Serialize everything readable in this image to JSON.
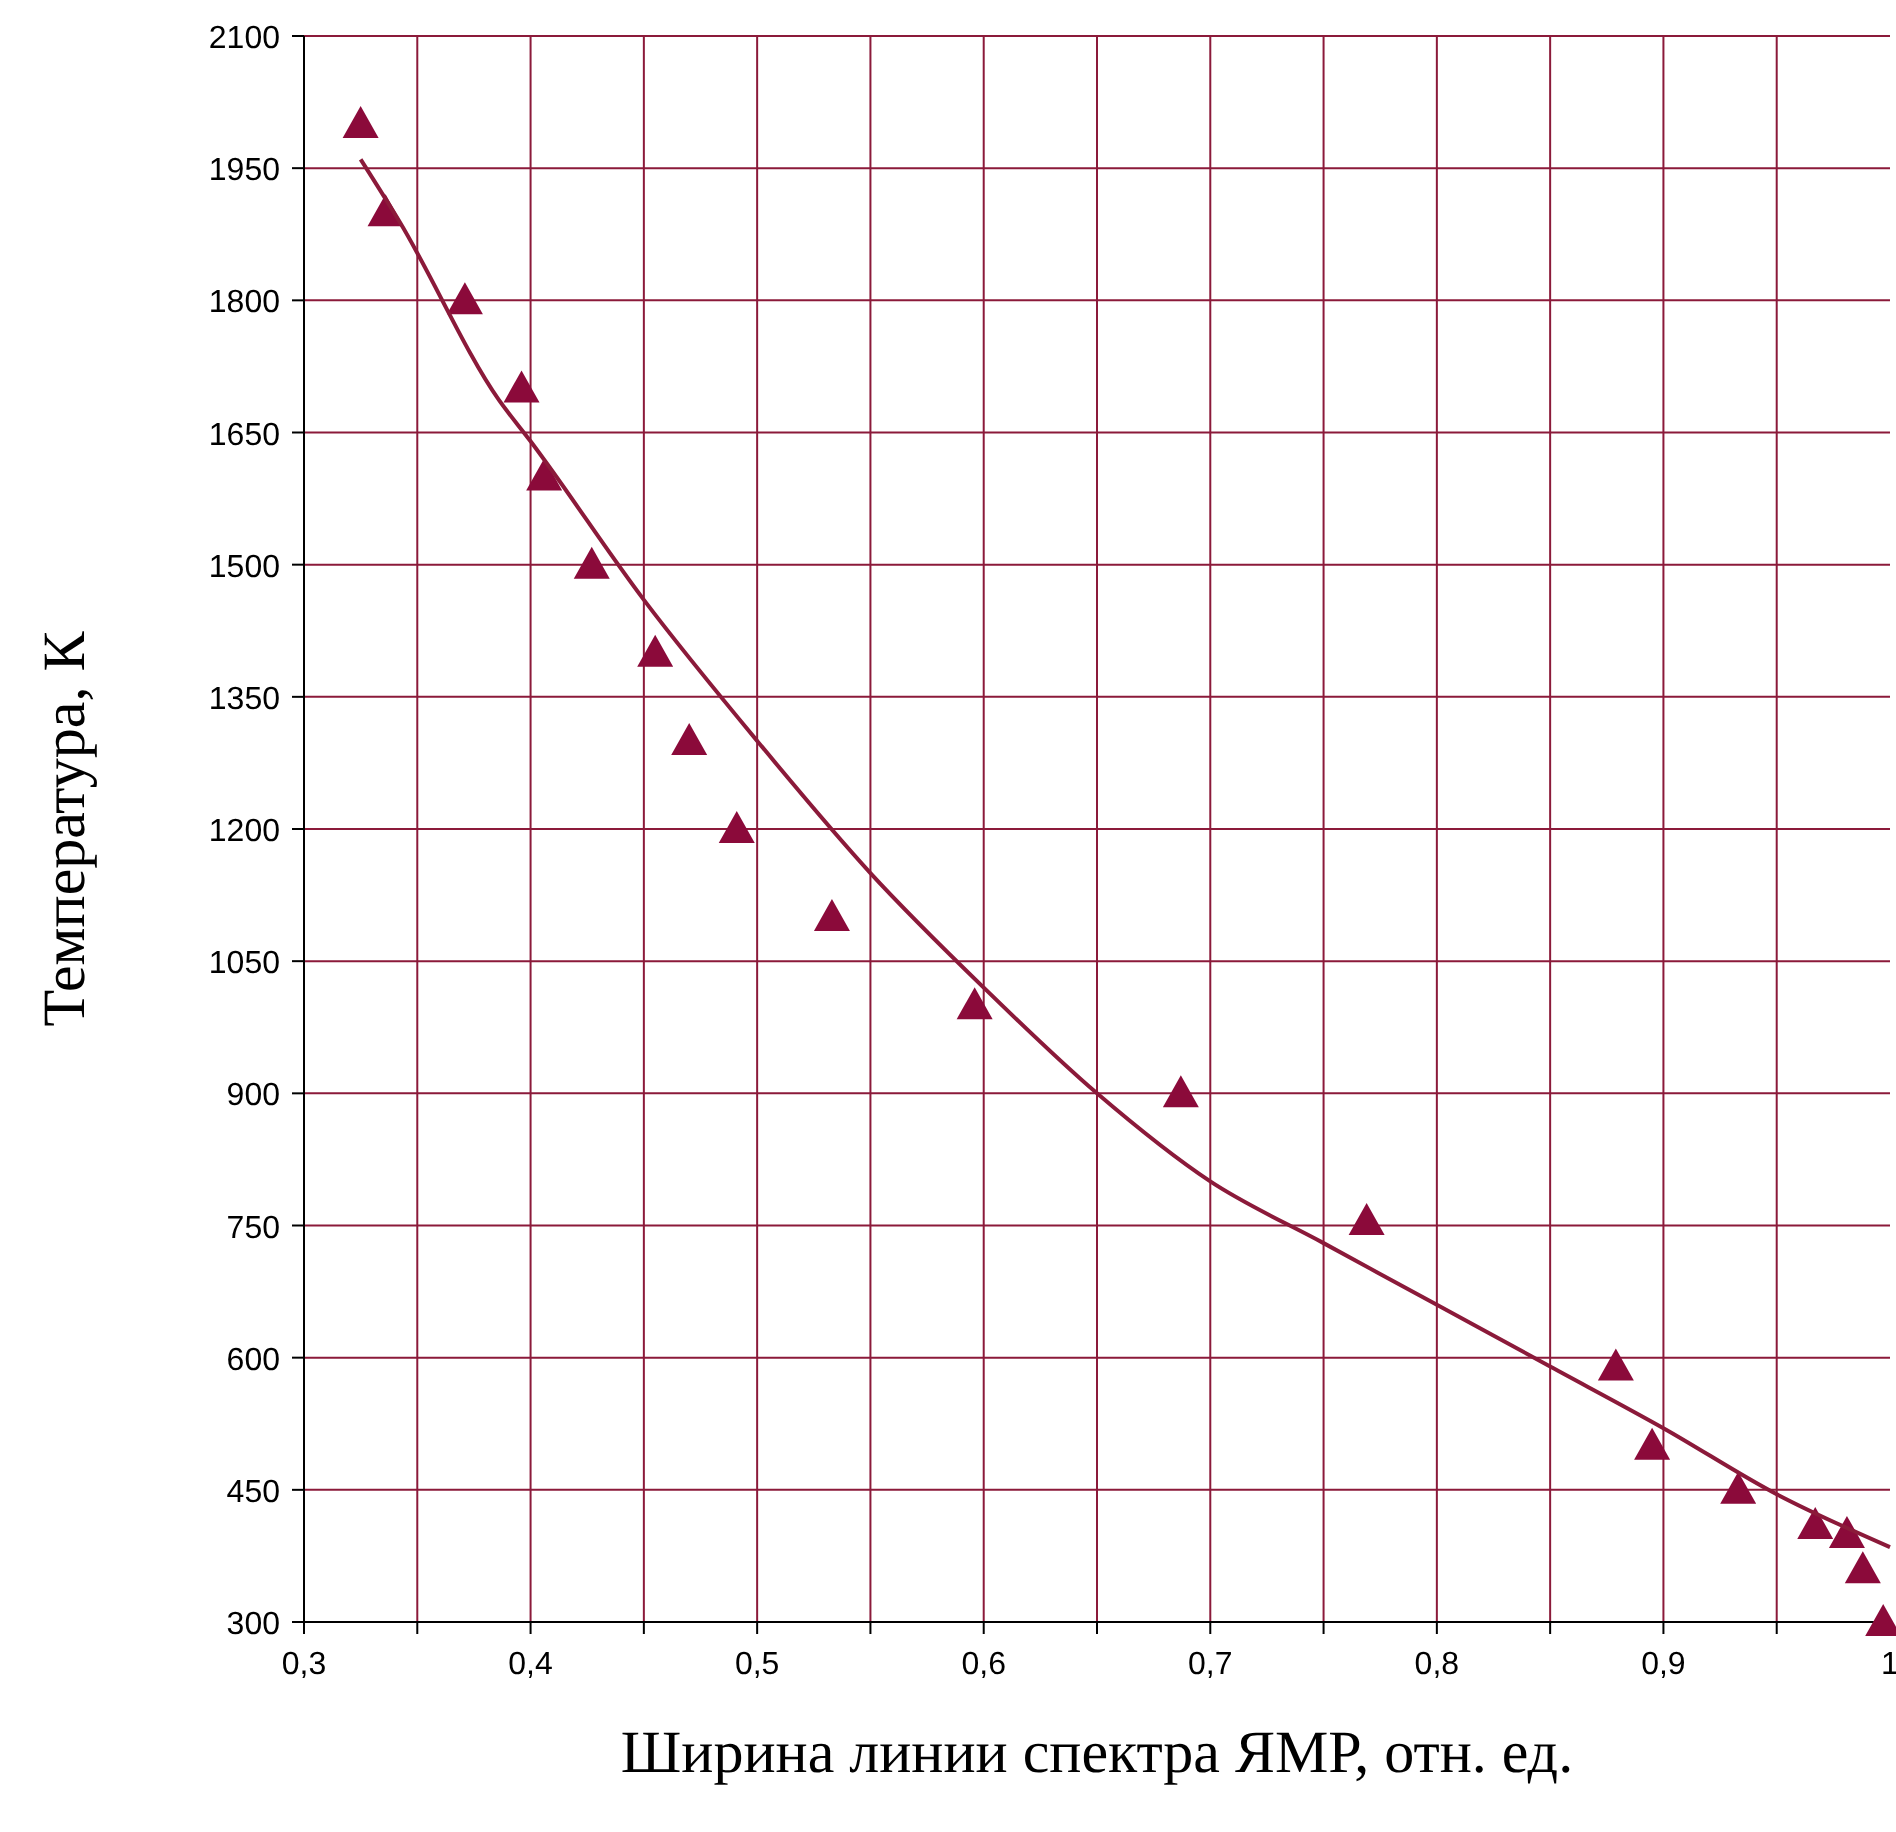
{
  "chart_data": {
    "type": "scatter",
    "xlabel": "Ширина линии спектра ЯМР, отн. ед.",
    "ylabel": "Температура, К",
    "xlim": [
      0.3,
      1
    ],
    "ylim": [
      300,
      2100
    ],
    "xticks": [
      {
        "value": 0.3,
        "label": "0,3"
      },
      {
        "value": 0.35,
        "label": null
      },
      {
        "value": 0.4,
        "label": "0,4"
      },
      {
        "value": 0.45,
        "label": null
      },
      {
        "value": 0.5,
        "label": "0,5"
      },
      {
        "value": 0.55,
        "label": null
      },
      {
        "value": 0.6,
        "label": "0,6"
      },
      {
        "value": 0.65,
        "label": null
      },
      {
        "value": 0.7,
        "label": "0,7"
      },
      {
        "value": 0.75,
        "label": null
      },
      {
        "value": 0.8,
        "label": "0,8"
      },
      {
        "value": 0.85,
        "label": null
      },
      {
        "value": 0.9,
        "label": "0,9"
      },
      {
        "value": 0.95,
        "label": null
      },
      {
        "value": 1,
        "label": "1"
      }
    ],
    "yticks": [
      300,
      450,
      600,
      750,
      900,
      1050,
      1200,
      1350,
      1500,
      1650,
      1800,
      1950,
      2100
    ],
    "grid": true,
    "series": [
      {
        "marker": "triangle",
        "color": "#8b0a3a",
        "x": [
          0.325,
          0.336,
          0.371,
          0.396,
          0.406,
          0.427,
          0.455,
          0.47,
          0.491,
          0.533,
          0.596,
          0.687,
          0.769,
          0.879,
          0.895,
          0.933,
          0.967,
          0.981,
          0.988,
          0.997
        ],
        "values": [
          2000,
          1900,
          1800,
          1700,
          1600,
          1500,
          1400,
          1300,
          1200,
          1100,
          1000,
          900,
          755,
          590,
          500,
          450,
          410,
          400,
          360,
          300
        ]
      },
      {
        "type": "line",
        "color": "#8b1a3a",
        "x": [
          0.325,
          0.342,
          0.386,
          0.4,
          0.45,
          0.5,
          0.55,
          0.6,
          0.65,
          0.7,
          0.75,
          0.8,
          0.85,
          0.9,
          0.95,
          1
        ],
        "values": [
          1960,
          1890,
          1687,
          1640,
          1460,
          1300,
          1150,
          1020,
          900,
          800,
          730,
          660,
          590,
          520,
          445,
          385
        ]
      }
    ]
  }
}
